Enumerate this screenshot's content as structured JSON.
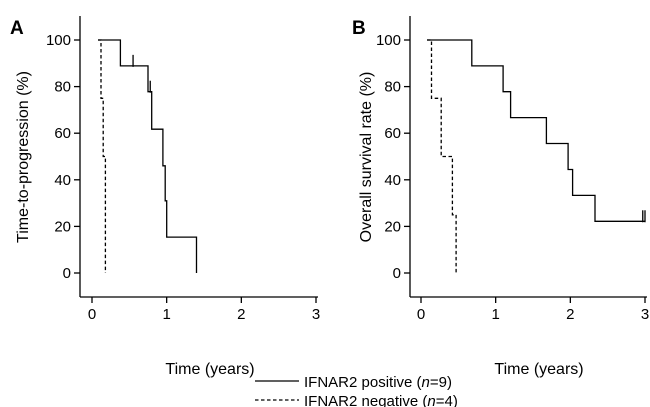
{
  "chart_data": [
    {
      "type": "line",
      "panel_label": "A",
      "xlabel": "Time (years)",
      "ylabel": "Time-to-progression (%)",
      "xlim": [
        0,
        3
      ],
      "ylim": [
        0,
        100
      ],
      "x_ticks": [
        0,
        1,
        2,
        3
      ],
      "y_ticks": [
        0,
        20,
        40,
        60,
        80,
        100
      ],
      "grid": false,
      "series": [
        {
          "name": "IFNAR2 positive",
          "line_style": "solid",
          "steps": [
            [
              0.08,
              100
            ],
            [
              0.38,
              100
            ],
            [
              0.38,
              88.9
            ],
            [
              0.75,
              88.9
            ],
            [
              0.75,
              77.8
            ],
            [
              0.8,
              77.8
            ],
            [
              0.8,
              61.7
            ],
            [
              0.95,
              61.7
            ],
            [
              0.95,
              46
            ],
            [
              0.98,
              46
            ],
            [
              0.98,
              31
            ],
            [
              1.0,
              31
            ],
            [
              1.0,
              15.4
            ],
            [
              1.4,
              15.4
            ],
            [
              1.4,
              0
            ]
          ],
          "censor_marks": [
            [
              0.55,
              88.9
            ],
            [
              0.78,
              77.8
            ]
          ]
        },
        {
          "name": "IFNAR2 negative",
          "line_style": "dashed",
          "steps": [
            [
              0.08,
              100
            ],
            [
              0.12,
              100
            ],
            [
              0.12,
              75
            ],
            [
              0.15,
              75
            ],
            [
              0.15,
              50
            ],
            [
              0.18,
              50
            ],
            [
              0.18,
              0
            ]
          ],
          "censor_marks": []
        }
      ]
    },
    {
      "type": "line",
      "panel_label": "B",
      "xlabel": "Time (years)",
      "ylabel": "Overall survival rate (%)",
      "xlim": [
        0,
        3
      ],
      "ylim": [
        0,
        100
      ],
      "x_ticks": [
        0,
        1,
        2,
        3
      ],
      "y_ticks": [
        0,
        20,
        40,
        60,
        80,
        100
      ],
      "grid": false,
      "series": [
        {
          "name": "IFNAR2 positive",
          "line_style": "solid",
          "steps": [
            [
              0.08,
              100
            ],
            [
              0.68,
              100
            ],
            [
              0.68,
              88.9
            ],
            [
              1.1,
              88.9
            ],
            [
              1.1,
              77.8
            ],
            [
              1.2,
              77.8
            ],
            [
              1.2,
              66.7
            ],
            [
              1.68,
              66.7
            ],
            [
              1.68,
              55.6
            ],
            [
              1.97,
              55.6
            ],
            [
              1.97,
              44.4
            ],
            [
              2.03,
              44.4
            ],
            [
              2.03,
              33.3
            ],
            [
              2.33,
              33.3
            ],
            [
              2.33,
              22.2
            ],
            [
              3.0,
              22.2
            ]
          ],
          "censor_marks": [
            [
              2.97,
              22.2
            ],
            [
              3.0,
              22.2
            ]
          ]
        },
        {
          "name": "IFNAR2 negative",
          "line_style": "dashed",
          "steps": [
            [
              0.08,
              100
            ],
            [
              0.14,
              100
            ],
            [
              0.14,
              75
            ],
            [
              0.27,
              75
            ],
            [
              0.27,
              50
            ],
            [
              0.42,
              50
            ],
            [
              0.42,
              25
            ],
            [
              0.47,
              25
            ],
            [
              0.47,
              0
            ]
          ],
          "censor_marks": []
        }
      ]
    }
  ],
  "legend": {
    "placement": "bottom-center",
    "entries": [
      {
        "line_style": "solid",
        "prefix": "IFNAR2 positive (",
        "italic": "n",
        "suffix": "=9)"
      },
      {
        "line_style": "dashed",
        "prefix": "IFNAR2 negative (",
        "italic": "n",
        "suffix": "=4)"
      }
    ]
  }
}
